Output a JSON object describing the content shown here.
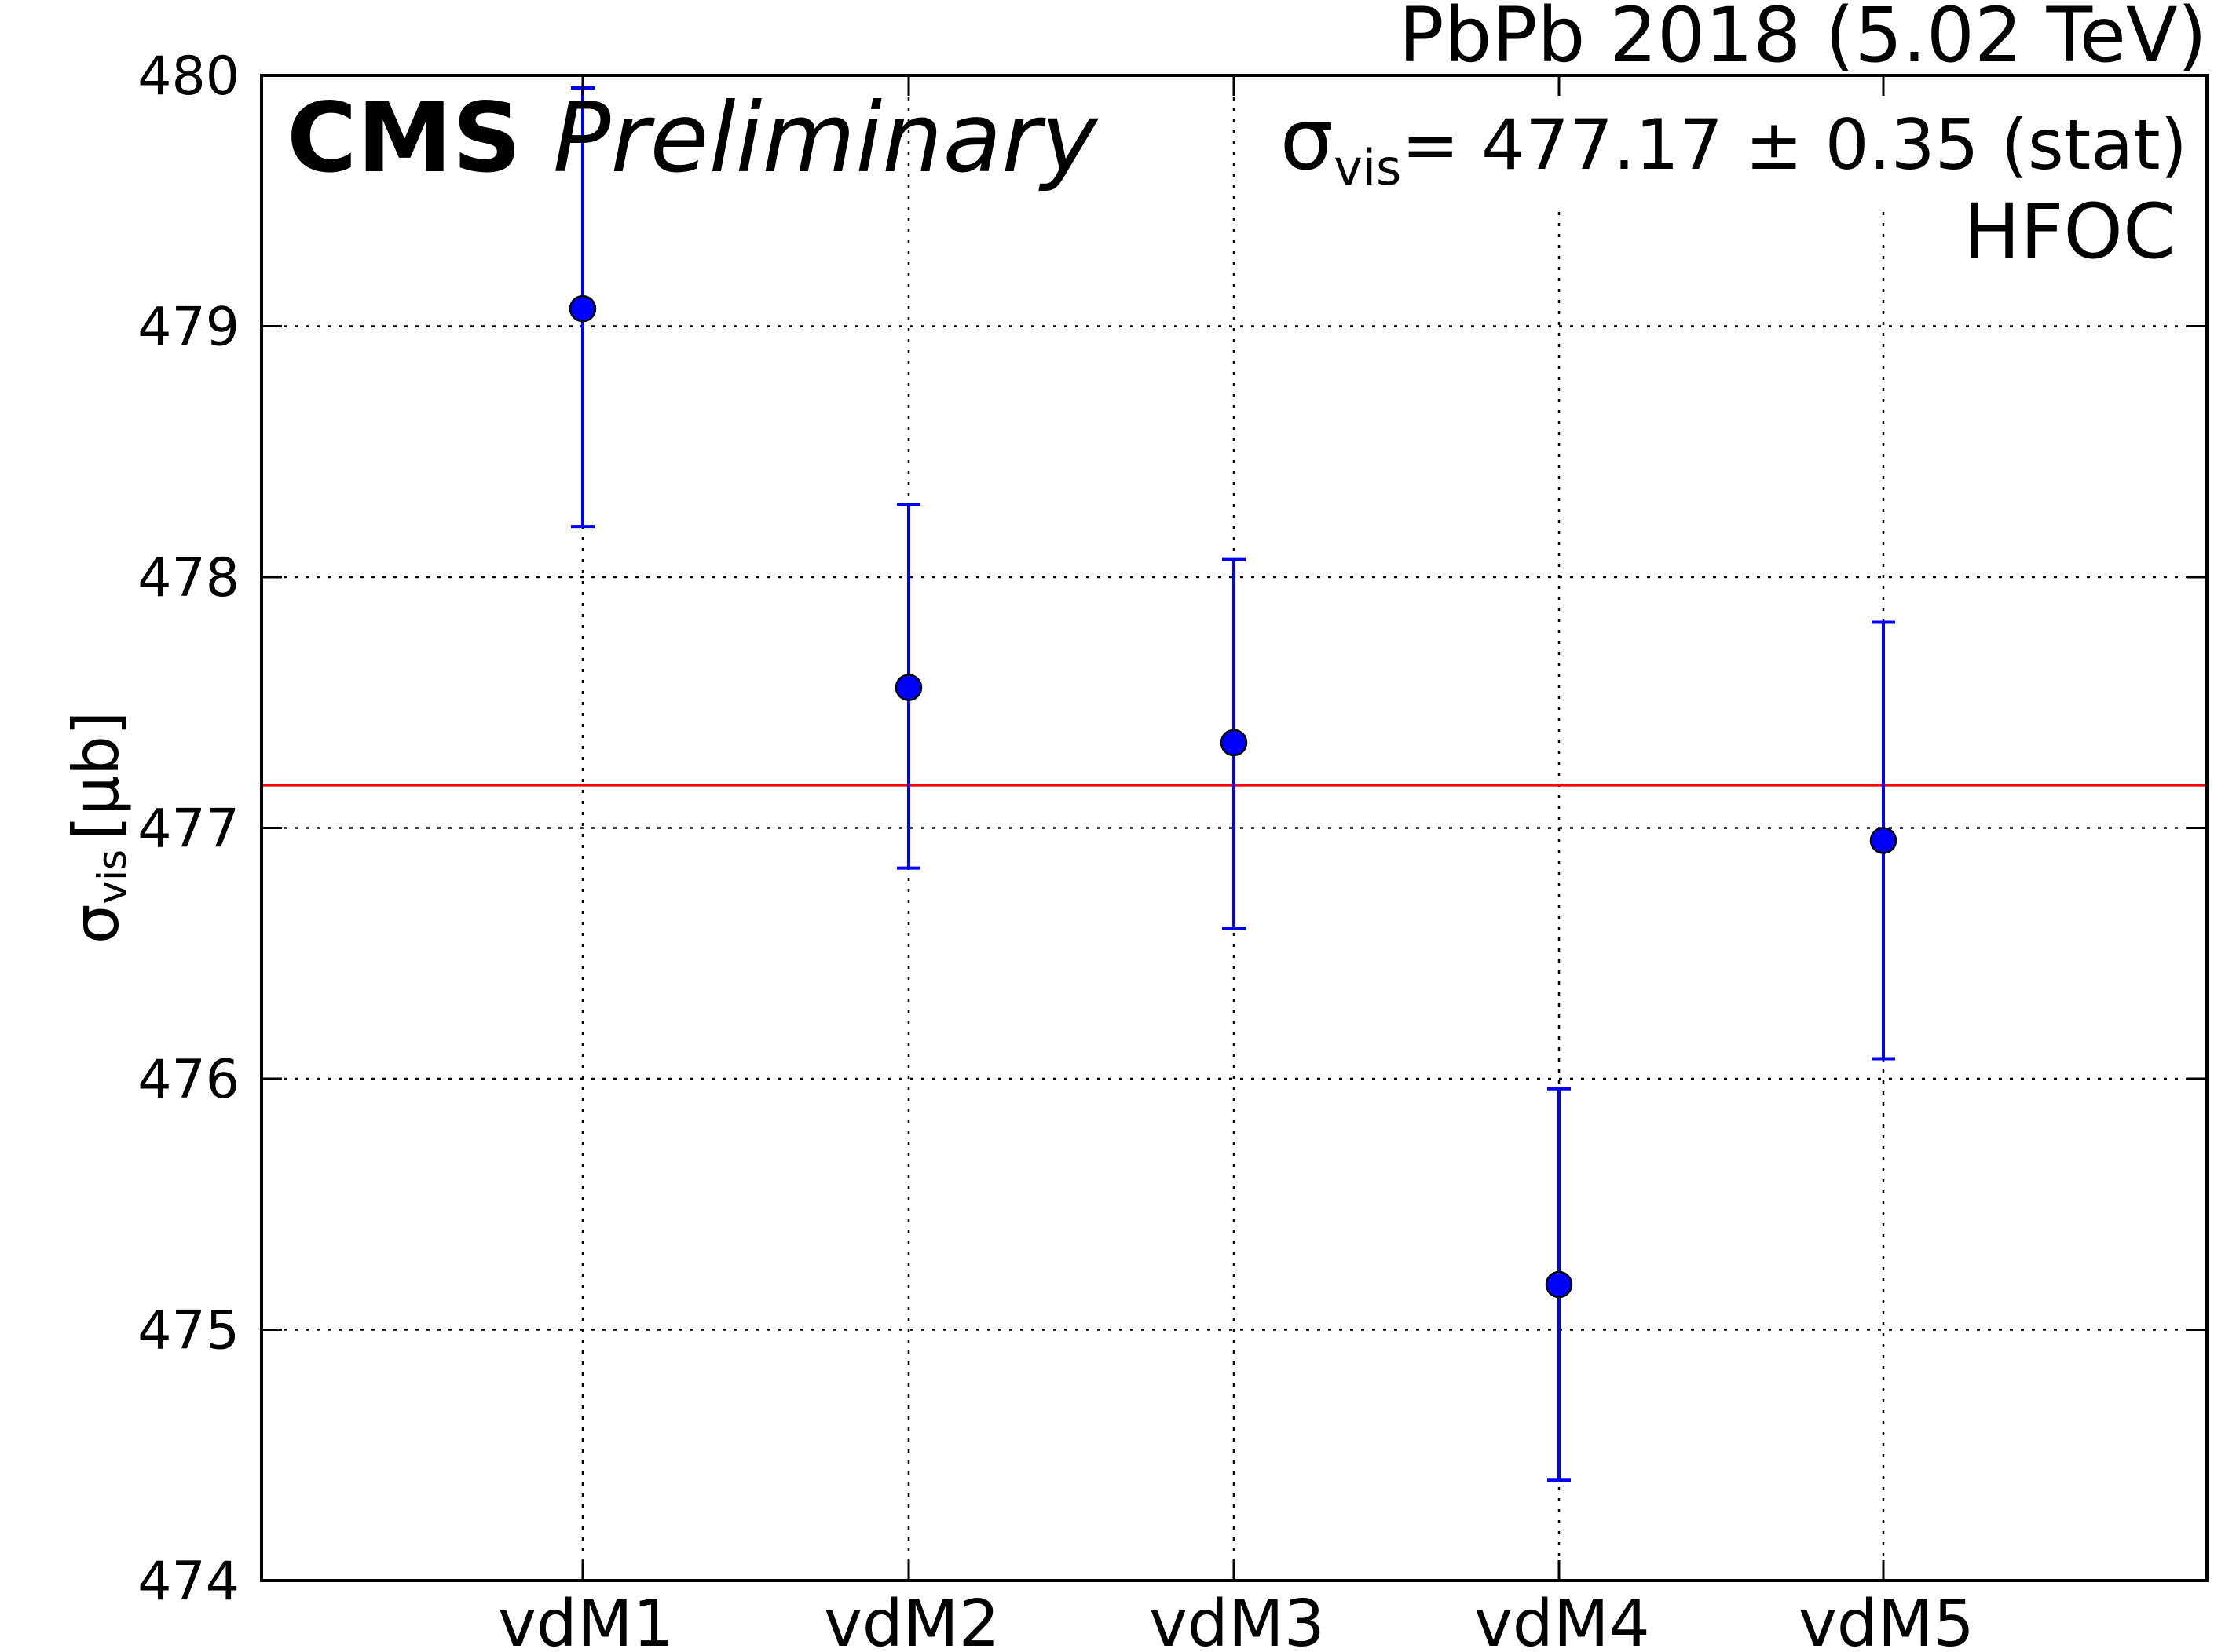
{
  "chart_data": {
    "type": "scatter",
    "categories": [
      "vdM1",
      "vdM2",
      "vdM3",
      "vdM4",
      "vdM5"
    ],
    "series": [
      {
        "values": [
          479.07,
          477.56,
          477.34,
          475.18,
          476.95
        ],
        "err_low": [
          478.2,
          476.84,
          476.6,
          474.4,
          476.08
        ],
        "err_high": [
          479.95,
          478.29,
          478.07,
          475.96,
          477.82
        ],
        "color": "#0000ff"
      }
    ],
    "reference_line": {
      "value": 477.17,
      "color": "#ff0000"
    },
    "ylim": [
      474,
      480
    ],
    "yticks": [
      "474",
      "475",
      "476",
      "477",
      "478",
      "479",
      "480"
    ],
    "ylabel": {
      "symbol": "σ",
      "subscript": "vis",
      "unit": "[μb]"
    },
    "grid": true,
    "header": "PbPb 2018 (5.02 TeV)",
    "experiment": "CMS",
    "status": "Preliminary",
    "result": {
      "symbol": "σ",
      "subscript": "vis",
      "text": "= 477.17 ± 0.35 (stat)"
    },
    "detector": "HFOC"
  }
}
